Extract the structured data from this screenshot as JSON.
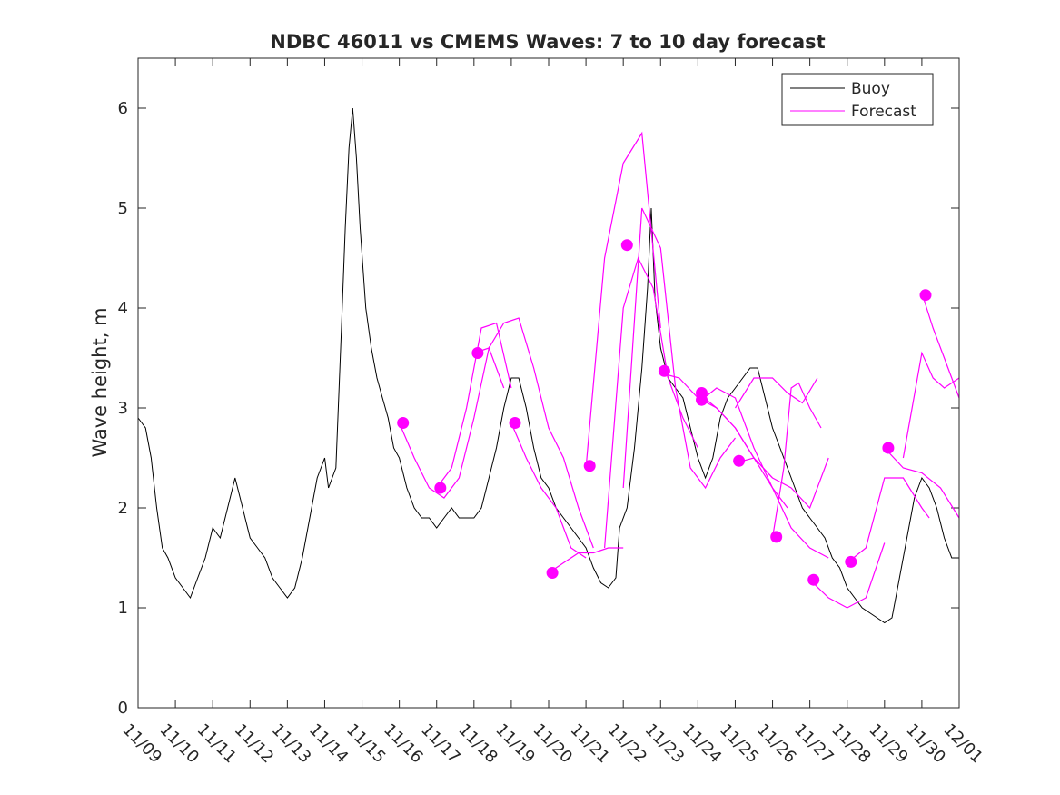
{
  "chart_data": {
    "type": "line",
    "title": "NDBC 46011 vs CMEMS Waves: 7 to 10 day forecast",
    "xlabel": "",
    "ylabel": "Wave height, m",
    "xlim": [
      0,
      22
    ],
    "ylim": [
      0,
      6.5
    ],
    "yticks": [
      0,
      1,
      2,
      3,
      4,
      5,
      6
    ],
    "xtick_labels": [
      "11/09",
      "11/10",
      "11/11",
      "11/12",
      "11/13",
      "11/14",
      "11/15",
      "11/16",
      "11/17",
      "11/18",
      "11/19",
      "11/20",
      "11/21",
      "11/22",
      "11/23",
      "11/24",
      "11/25",
      "11/26",
      "11/27",
      "11/28",
      "11/29",
      "11/30",
      "12/01"
    ],
    "legend": {
      "position": "top-right",
      "entries": [
        "Buoy",
        "Forecast"
      ]
    },
    "colors": {
      "buoy": "#000000",
      "forecast": "#ff00ff",
      "axis": "#262626"
    },
    "buoy": [
      [
        0.0,
        2.9
      ],
      [
        0.2,
        2.8
      ],
      [
        0.35,
        2.5
      ],
      [
        0.5,
        2.0
      ],
      [
        0.65,
        1.6
      ],
      [
        0.8,
        1.5
      ],
      [
        1.0,
        1.3
      ],
      [
        1.2,
        1.2
      ],
      [
        1.4,
        1.1
      ],
      [
        1.6,
        1.3
      ],
      [
        1.8,
        1.5
      ],
      [
        2.0,
        1.8
      ],
      [
        2.2,
        1.7
      ],
      [
        2.4,
        2.0
      ],
      [
        2.6,
        2.3
      ],
      [
        2.8,
        2.0
      ],
      [
        3.0,
        1.7
      ],
      [
        3.2,
        1.6
      ],
      [
        3.4,
        1.5
      ],
      [
        3.6,
        1.3
      ],
      [
        3.8,
        1.2
      ],
      [
        4.0,
        1.1
      ],
      [
        4.2,
        1.2
      ],
      [
        4.4,
        1.5
      ],
      [
        4.6,
        1.9
      ],
      [
        4.8,
        2.3
      ],
      [
        5.0,
        2.5
      ],
      [
        5.1,
        2.2
      ],
      [
        5.3,
        2.4
      ],
      [
        5.45,
        3.8
      ],
      [
        5.55,
        4.8
      ],
      [
        5.65,
        5.6
      ],
      [
        5.75,
        6.0
      ],
      [
        5.85,
        5.5
      ],
      [
        5.95,
        4.8
      ],
      [
        6.1,
        4.0
      ],
      [
        6.25,
        3.6
      ],
      [
        6.4,
        3.3
      ],
      [
        6.55,
        3.1
      ],
      [
        6.7,
        2.9
      ],
      [
        6.85,
        2.6
      ],
      [
        7.0,
        2.5
      ],
      [
        7.2,
        2.2
      ],
      [
        7.4,
        2.0
      ],
      [
        7.6,
        1.9
      ],
      [
        7.8,
        1.9
      ],
      [
        8.0,
        1.8
      ],
      [
        8.2,
        1.9
      ],
      [
        8.4,
        2.0
      ],
      [
        8.6,
        1.9
      ],
      [
        8.8,
        1.9
      ],
      [
        9.0,
        1.9
      ],
      [
        9.2,
        2.0
      ],
      [
        9.4,
        2.3
      ],
      [
        9.6,
        2.6
      ],
      [
        9.8,
        3.0
      ],
      [
        10.0,
        3.3
      ],
      [
        10.2,
        3.3
      ],
      [
        10.4,
        3.0
      ],
      [
        10.6,
        2.6
      ],
      [
        10.8,
        2.3
      ],
      [
        11.0,
        2.2
      ],
      [
        11.2,
        2.0
      ],
      [
        11.4,
        1.9
      ],
      [
        11.6,
        1.8
      ],
      [
        11.8,
        1.7
      ],
      [
        12.0,
        1.6
      ],
      [
        12.2,
        1.4
      ],
      [
        12.4,
        1.25
      ],
      [
        12.6,
        1.2
      ],
      [
        12.8,
        1.3
      ],
      [
        12.9,
        1.8
      ],
      [
        13.1,
        2.0
      ],
      [
        13.3,
        2.6
      ],
      [
        13.5,
        3.4
      ],
      [
        13.65,
        4.2
      ],
      [
        13.75,
        5.0
      ],
      [
        13.85,
        4.1
      ],
      [
        14.0,
        3.6
      ],
      [
        14.2,
        3.3
      ],
      [
        14.4,
        3.2
      ],
      [
        14.6,
        3.1
      ],
      [
        14.8,
        2.8
      ],
      [
        15.0,
        2.5
      ],
      [
        15.2,
        2.3
      ],
      [
        15.4,
        2.5
      ],
      [
        15.6,
        2.9
      ],
      [
        15.8,
        3.1
      ],
      [
        16.0,
        3.2
      ],
      [
        16.2,
        3.3
      ],
      [
        16.4,
        3.4
      ],
      [
        16.6,
        3.4
      ],
      [
        16.8,
        3.1
      ],
      [
        17.0,
        2.8
      ],
      [
        17.2,
        2.6
      ],
      [
        17.4,
        2.4
      ],
      [
        17.6,
        2.2
      ],
      [
        17.8,
        2.0
      ],
      [
        18.0,
        1.9
      ],
      [
        18.2,
        1.8
      ],
      [
        18.4,
        1.7
      ],
      [
        18.6,
        1.5
      ],
      [
        18.8,
        1.4
      ],
      [
        19.0,
        1.2
      ],
      [
        19.2,
        1.1
      ],
      [
        19.4,
        1.0
      ],
      [
        19.6,
        0.95
      ],
      [
        19.8,
        0.9
      ],
      [
        20.0,
        0.85
      ],
      [
        20.2,
        0.9
      ],
      [
        20.4,
        1.3
      ],
      [
        20.6,
        1.7
      ],
      [
        20.8,
        2.1
      ],
      [
        21.0,
        2.3
      ],
      [
        21.2,
        2.2
      ],
      [
        21.4,
        2.0
      ],
      [
        21.6,
        1.7
      ],
      [
        21.8,
        1.5
      ],
      [
        22.0,
        1.5
      ]
    ],
    "forecast_lines": [
      [
        [
          7.0,
          2.85
        ],
        [
          7.4,
          2.5
        ],
        [
          7.8,
          2.2
        ],
        [
          8.2,
          2.1
        ],
        [
          8.6,
          2.3
        ],
        [
          9.0,
          2.9
        ],
        [
          9.4,
          3.6
        ],
        [
          9.8,
          3.2
        ]
      ],
      [
        [
          8.0,
          2.2
        ],
        [
          8.4,
          2.4
        ],
        [
          8.8,
          3.0
        ],
        [
          9.2,
          3.8
        ],
        [
          9.6,
          3.85
        ],
        [
          10.0,
          3.2
        ]
      ],
      [
        [
          9.0,
          3.55
        ],
        [
          9.4,
          3.6
        ],
        [
          9.8,
          3.85
        ],
        [
          10.2,
          3.9
        ],
        [
          10.6,
          3.4
        ],
        [
          11.0,
          2.8
        ],
        [
          11.4,
          2.5
        ],
        [
          11.8,
          2.0
        ],
        [
          12.2,
          1.6
        ]
      ],
      [
        [
          10.0,
          2.85
        ],
        [
          10.4,
          2.5
        ],
        [
          10.8,
          2.2
        ],
        [
          11.2,
          2.0
        ],
        [
          11.6,
          1.6
        ],
        [
          12.0,
          1.5
        ]
      ],
      [
        [
          11.0,
          1.35
        ],
        [
          11.4,
          1.45
        ],
        [
          11.8,
          1.55
        ],
        [
          12.2,
          1.55
        ],
        [
          12.6,
          1.6
        ],
        [
          13.0,
          1.6
        ]
      ],
      [
        [
          12.0,
          2.4
        ],
        [
          12.5,
          4.5
        ],
        [
          13.0,
          5.45
        ],
        [
          13.5,
          5.75
        ],
        [
          14.0,
          3.8
        ]
      ],
      [
        [
          12.5,
          1.6
        ],
        [
          13.0,
          4.0
        ],
        [
          13.4,
          4.5
        ],
        [
          13.8,
          4.2
        ],
        [
          14.2,
          3.3
        ],
        [
          14.6,
          2.9
        ],
        [
          15.0,
          2.6
        ]
      ],
      [
        [
          13.0,
          2.2
        ],
        [
          13.5,
          5.0
        ],
        [
          14.0,
          4.6
        ],
        [
          14.4,
          3.2
        ],
        [
          14.8,
          2.4
        ],
        [
          15.2,
          2.2
        ],
        [
          15.6,
          2.5
        ],
        [
          16.0,
          2.7
        ]
      ],
      [
        [
          14.0,
          3.35
        ],
        [
          14.5,
          3.3
        ],
        [
          15.0,
          3.1
        ],
        [
          15.5,
          3.0
        ],
        [
          16.0,
          2.8
        ],
        [
          16.5,
          2.5
        ],
        [
          17.0,
          2.3
        ]
      ],
      [
        [
          15.0,
          3.15
        ],
        [
          15.5,
          3.0
        ],
        [
          16.0,
          2.8
        ],
        [
          16.5,
          2.5
        ],
        [
          17.0,
          2.2
        ],
        [
          17.4,
          2.0
        ]
      ],
      [
        [
          15.0,
          3.05
        ],
        [
          15.5,
          3.2
        ],
        [
          16.0,
          3.1
        ],
        [
          16.5,
          2.6
        ],
        [
          17.0,
          2.2
        ],
        [
          17.5,
          1.8
        ],
        [
          18.0,
          1.6
        ],
        [
          18.5,
          1.5
        ]
      ],
      [
        [
          16.0,
          2.45
        ],
        [
          16.5,
          2.5
        ],
        [
          17.0,
          2.3
        ],
        [
          17.5,
          2.2
        ],
        [
          18.0,
          2.0
        ],
        [
          18.5,
          2.5
        ]
      ],
      [
        [
          16.0,
          3.0
        ],
        [
          16.5,
          3.3
        ],
        [
          17.0,
          3.3
        ],
        [
          17.4,
          3.15
        ],
        [
          17.8,
          3.05
        ],
        [
          18.2,
          3.3
        ]
      ],
      [
        [
          17.0,
          1.7
        ],
        [
          17.3,
          2.4
        ],
        [
          17.5,
          3.2
        ],
        [
          17.7,
          3.25
        ],
        [
          18.0,
          3.0
        ],
        [
          18.3,
          2.8
        ]
      ],
      [
        [
          18.0,
          1.28
        ],
        [
          18.5,
          1.1
        ],
        [
          19.0,
          1.0
        ],
        [
          19.5,
          1.1
        ],
        [
          20.0,
          1.65
        ]
      ],
      [
        [
          19.0,
          1.45
        ],
        [
          19.5,
          1.6
        ],
        [
          20.0,
          2.3
        ],
        [
          20.5,
          2.3
        ],
        [
          21.0,
          2.0
        ],
        [
          21.2,
          1.9
        ]
      ],
      [
        [
          20.0,
          2.6
        ],
        [
          20.5,
          2.4
        ],
        [
          21.0,
          2.35
        ],
        [
          21.5,
          2.2
        ],
        [
          22.0,
          1.9
        ]
      ],
      [
        [
          20.5,
          2.5
        ],
        [
          21.0,
          3.55
        ],
        [
          21.3,
          3.3
        ],
        [
          21.6,
          3.2
        ],
        [
          22.0,
          3.3
        ]
      ],
      [
        [
          21.0,
          4.15
        ],
        [
          21.3,
          3.8
        ],
        [
          21.6,
          3.5
        ],
        [
          22.0,
          3.1
        ]
      ]
    ],
    "forecast_points": [
      [
        7.1,
        2.85
      ],
      [
        8.1,
        2.2
      ],
      [
        9.1,
        3.55
      ],
      [
        10.1,
        2.85
      ],
      [
        11.1,
        1.35
      ],
      [
        12.1,
        2.42
      ],
      [
        13.1,
        4.63
      ],
      [
        14.1,
        3.37
      ],
      [
        15.1,
        3.15
      ],
      [
        15.1,
        3.08
      ],
      [
        16.1,
        2.47
      ],
      [
        17.1,
        1.71
      ],
      [
        18.1,
        1.28
      ],
      [
        19.1,
        1.46
      ],
      [
        20.1,
        2.6
      ],
      [
        21.1,
        4.13
      ]
    ]
  }
}
